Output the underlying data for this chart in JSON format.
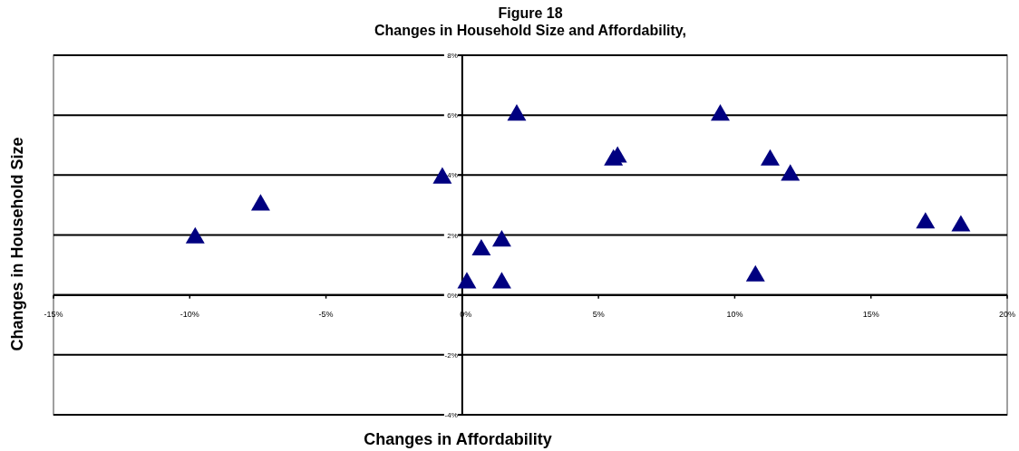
{
  "chart_data": {
    "type": "scatter",
    "title": "Figure 18",
    "subtitle": "Changes in Household Size and Affordability,",
    "xlabel": "Changes in Affordability",
    "ylabel": "Changes in Household Size",
    "x": [
      -9.8,
      -7.4,
      -0.73,
      0.17,
      0.7,
      1.45,
      1.45,
      2.0,
      5.55,
      5.7,
      9.47,
      10.76,
      11.3,
      12.04,
      17.0,
      18.3
    ],
    "values": [
      1.9,
      3.0,
      3.9,
      0.4,
      1.5,
      1.8,
      0.4,
      6.0,
      4.5,
      4.6,
      6.0,
      0.63,
      4.5,
      4.0,
      2.4,
      2.3
    ],
    "color": "#000080",
    "marker": "triangle",
    "grid": "y",
    "legend": false,
    "xlim": [
      -15,
      20
    ],
    "xticks": [
      {
        "value": -15,
        "label": "-15%"
      },
      {
        "value": -10,
        "label": "-10%"
      },
      {
        "value": -5,
        "label": "-5%"
      },
      {
        "value": 0,
        "label": "0%"
      },
      {
        "value": 5,
        "label": "5%"
      },
      {
        "value": 10,
        "label": "10%"
      },
      {
        "value": 15,
        "label": "15%"
      },
      {
        "value": 20,
        "label": "20%"
      }
    ],
    "ylim": [
      -4,
      8
    ],
    "yticks": [
      {
        "value": -4,
        "label": "-4%"
      },
      {
        "value": -2,
        "label": "-2%"
      },
      {
        "value": 0,
        "label": "0%"
      },
      {
        "value": 2,
        "label": "2%"
      },
      {
        "value": 4,
        "label": "4%"
      },
      {
        "value": 6,
        "label": "6%"
      },
      {
        "value": 8,
        "label": "8%"
      }
    ]
  }
}
